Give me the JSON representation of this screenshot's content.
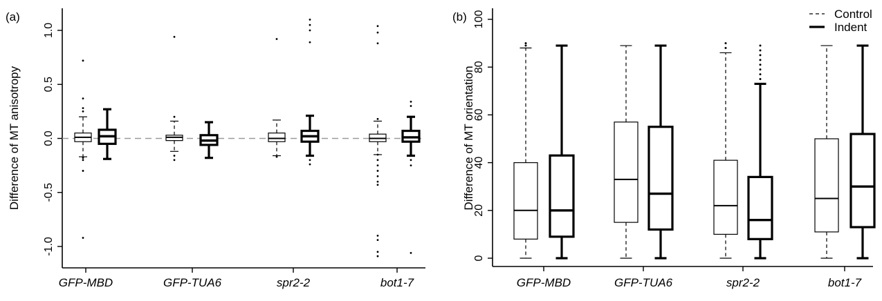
{
  "chart_data": [
    {
      "panel_label": "(a)",
      "type": "box",
      "ylabel": "Difference of MT anisotropy",
      "ylim": [
        -1.15,
        1.15
      ],
      "yticks": [
        -1.0,
        -0.5,
        0.0,
        0.5,
        1.0
      ],
      "ytick_labels": [
        "-1.0",
        "-0.5",
        "0.0",
        "0.5",
        "1.0"
      ],
      "reference_line": 0.0,
      "categories": [
        "GFP-MBD",
        "GFP-TUA6",
        "spr2-2",
        "bot1-7"
      ],
      "series": [
        {
          "style": "dashed-whisker, thin",
          "boxes": [
            {
              "min": -0.17,
              "q1": -0.03,
              "median": 0.01,
              "q3": 0.05,
              "max": 0.2,
              "outliers": [
                0.72,
                0.37,
                0.28,
                0.25,
                -0.18,
                -0.2,
                -0.3,
                -0.92
              ]
            },
            {
              "min": -0.12,
              "q1": -0.02,
              "median": 0.01,
              "q3": 0.03,
              "max": 0.16,
              "outliers": [
                0.94,
                0.2,
                -0.16,
                -0.2
              ]
            },
            {
              "min": -0.16,
              "q1": -0.03,
              "median": 0.0,
              "q3": 0.05,
              "max": 0.17,
              "outliers": [
                0.92,
                -0.17
              ]
            },
            {
              "min": -0.15,
              "q1": -0.03,
              "median": 0.0,
              "q3": 0.04,
              "max": 0.16,
              "outliers": [
                1.04,
                0.98,
                0.88,
                0.18,
                -0.15,
                -0.2,
                -0.25,
                -0.3,
                -0.35,
                -0.4,
                -0.43,
                -0.9,
                -0.94,
                -1.05,
                -1.09
              ]
            }
          ]
        },
        {
          "style": "solid-whisker, thick",
          "boxes": [
            {
              "min": -0.19,
              "q1": -0.05,
              "median": 0.02,
              "q3": 0.08,
              "max": 0.27,
              "outliers": []
            },
            {
              "min": -0.18,
              "q1": -0.06,
              "median": -0.02,
              "q3": 0.03,
              "max": 0.15,
              "outliers": []
            },
            {
              "min": -0.16,
              "q1": -0.03,
              "median": 0.02,
              "q3": 0.07,
              "max": 0.21,
              "outliers": [
                1.1,
                1.05,
                1.0,
                0.89,
                -0.2,
                -0.24
              ]
            },
            {
              "min": -0.16,
              "q1": -0.03,
              "median": 0.01,
              "q3": 0.07,
              "max": 0.2,
              "outliers": [
                0.34,
                0.3,
                -0.2,
                -0.25,
                -1.06
              ]
            }
          ]
        }
      ]
    },
    {
      "panel_label": "(b)",
      "type": "box",
      "ylabel": "Difference of MT orientation",
      "ylim": [
        -1,
        101
      ],
      "yticks": [
        0,
        20,
        40,
        60,
        80,
        100
      ],
      "ytick_labels": [
        "0",
        "20",
        "40",
        "60",
        "80",
        "100"
      ],
      "categories": [
        "GFP-MBD",
        "GFP-TUA6",
        "spr2-2",
        "bot1-7"
      ],
      "legend": {
        "position": "top-right",
        "entries": [
          "Control",
          "Indent"
        ]
      },
      "series": [
        {
          "name": "Control",
          "style": "dashed-whisker, thin",
          "boxes": [
            {
              "min": 0,
              "q1": 8,
              "median": 20,
              "q3": 40,
              "max": 88,
              "outliers": [
                89,
                90
              ]
            },
            {
              "min": 0,
              "q1": 15,
              "median": 33,
              "q3": 57,
              "max": 89,
              "outliers": []
            },
            {
              "min": 0,
              "q1": 10,
              "median": 22,
              "q3": 41,
              "max": 86,
              "outliers": [
                88,
                90
              ]
            },
            {
              "min": 0,
              "q1": 11,
              "median": 25,
              "q3": 50,
              "max": 89,
              "outliers": []
            }
          ]
        },
        {
          "name": "Indent",
          "style": "solid-whisker, thick",
          "boxes": [
            {
              "min": 0,
              "q1": 9,
              "median": 20,
              "q3": 43,
              "max": 89,
              "outliers": []
            },
            {
              "min": 0,
              "q1": 12,
              "median": 27,
              "q3": 55,
              "max": 89,
              "outliers": []
            },
            {
              "min": 0,
              "q1": 8,
              "median": 16,
              "q3": 34,
              "max": 73,
              "outliers": [
                75,
                77,
                79,
                81,
                83,
                85,
                87,
                89
              ]
            },
            {
              "min": 0,
              "q1": 13,
              "median": 30,
              "q3": 52,
              "max": 89,
              "outliers": []
            }
          ]
        }
      ]
    }
  ]
}
